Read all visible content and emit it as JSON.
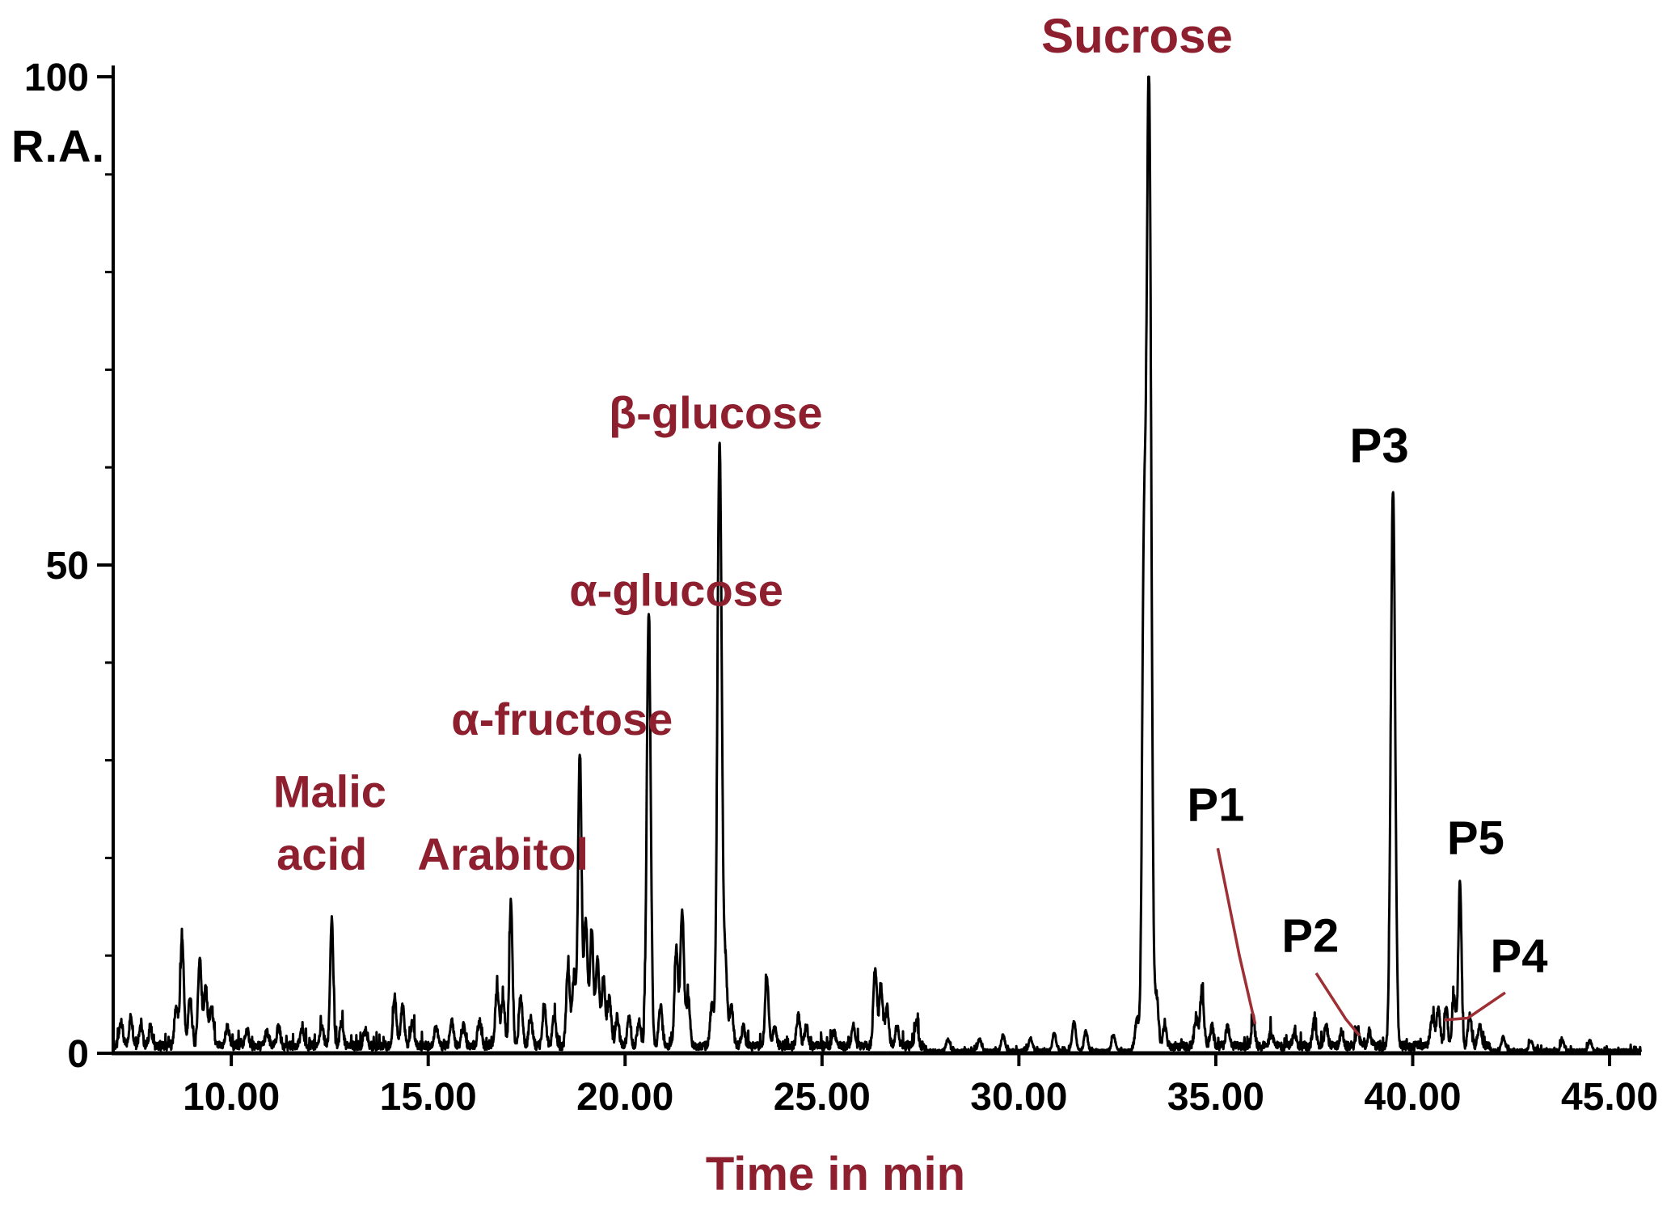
{
  "chart_data": {
    "type": "line",
    "chart_kind": "chromatogram",
    "title": "",
    "xlabel": "Time in min",
    "ylabel": "R.A.",
    "xlim": [
      7.0,
      45.8
    ],
    "ylim": [
      0,
      100
    ],
    "x_ticks": [
      10,
      15,
      20,
      25,
      30,
      35,
      40,
      45
    ],
    "x_tick_labels": [
      "10.00",
      "15.00",
      "20.00",
      "25.00",
      "30.00",
      "35.00",
      "40.00",
      "45.00"
    ],
    "y_ticks": [
      0,
      50,
      100
    ],
    "y_tick_labels": [
      "0",
      "50",
      "100"
    ],
    "y_minor_step": 10,
    "grid": false,
    "colors": {
      "trace": "#000000",
      "axis": "#000000",
      "annotation": "#8e1f2e",
      "leader": "#9e2f35",
      "black_label": "#000000"
    },
    "baseline_level": 1.0,
    "quiet_regions": [
      [
        27.6,
        32.9
      ],
      [
        42.0,
        45.8
      ]
    ],
    "labeled_peaks": [
      {
        "label": "Malic acid",
        "time": 12.55,
        "ra": 13,
        "sigma": 0.04
      },
      {
        "label": "Arabitol",
        "time": 17.1,
        "ra": 15,
        "sigma": 0.04
      },
      {
        "label": "α-fructose",
        "time": 18.85,
        "ra": 30,
        "sigma": 0.045
      },
      {
        "label": "α-glucose",
        "time": 20.6,
        "ra": 44,
        "sigma": 0.05
      },
      {
        "label": "β-glucose",
        "time": 22.4,
        "ra": 62,
        "sigma": 0.055
      },
      {
        "label": "Sucrose",
        "time": 33.3,
        "ra": 100,
        "sigma": 0.06
      },
      {
        "label": "P1",
        "time": 35.95,
        "ra": 3,
        "sigma": 0.04
      },
      {
        "label": "P2",
        "time": 38.6,
        "ra": 2,
        "sigma": 0.04
      },
      {
        "label": "P3",
        "time": 39.5,
        "ra": 57,
        "sigma": 0.055
      },
      {
        "label": "P4",
        "time": 40.85,
        "ra": 4,
        "sigma": 0.04
      },
      {
        "label": "P5",
        "time": 41.2,
        "ra": 17,
        "sigma": 0.04
      }
    ],
    "minor_peaks": [
      [
        7.2,
        2.5
      ],
      [
        7.45,
        3
      ],
      [
        7.7,
        2.2
      ],
      [
        7.95,
        1.8
      ],
      [
        8.6,
        4
      ],
      [
        8.75,
        11
      ],
      [
        8.95,
        5
      ],
      [
        9.2,
        9
      ],
      [
        9.35,
        6
      ],
      [
        9.5,
        4
      ],
      [
        9.9,
        2
      ],
      [
        10.4,
        1.6
      ],
      [
        10.9,
        1.4
      ],
      [
        11.2,
        2
      ],
      [
        11.8,
        1.6
      ],
      [
        12.3,
        2
      ],
      [
        12.8,
        2.4
      ],
      [
        13.4,
        1.6
      ],
      [
        14.15,
        5
      ],
      [
        14.35,
        4
      ],
      [
        14.6,
        2.5
      ],
      [
        15.2,
        2
      ],
      [
        15.6,
        2.4
      ],
      [
        15.9,
        2
      ],
      [
        16.3,
        2.5
      ],
      [
        16.75,
        6
      ],
      [
        16.9,
        5
      ],
      [
        17.35,
        5
      ],
      [
        17.6,
        3
      ],
      [
        17.95,
        4
      ],
      [
        18.2,
        3
      ],
      [
        18.55,
        8
      ],
      [
        18.7,
        7
      ],
      [
        19.0,
        13
      ],
      [
        19.15,
        12
      ],
      [
        19.3,
        9
      ],
      [
        19.45,
        7
      ],
      [
        19.6,
        5
      ],
      [
        19.8,
        3
      ],
      [
        20.1,
        3
      ],
      [
        20.35,
        2.5
      ],
      [
        20.9,
        4
      ],
      [
        21.3,
        10
      ],
      [
        21.45,
        14
      ],
      [
        21.6,
        5
      ],
      [
        22.2,
        4
      ],
      [
        22.55,
        8
      ],
      [
        22.7,
        4
      ],
      [
        23.0,
        2
      ],
      [
        23.6,
        7
      ],
      [
        23.8,
        2
      ],
      [
        24.4,
        3
      ],
      [
        24.6,
        2
      ],
      [
        25.3,
        1.5
      ],
      [
        25.8,
        2
      ],
      [
        26.35,
        8
      ],
      [
        26.5,
        6
      ],
      [
        26.65,
        4
      ],
      [
        26.9,
        2
      ],
      [
        27.4,
        2.5
      ],
      [
        28.2,
        1.2
      ],
      [
        29.0,
        1.2
      ],
      [
        29.6,
        1.6
      ],
      [
        30.3,
        1.3
      ],
      [
        30.9,
        1.8
      ],
      [
        31.4,
        3
      ],
      [
        31.7,
        2
      ],
      [
        32.4,
        1.6
      ],
      [
        33.0,
        3
      ],
      [
        33.17,
        44
      ],
      [
        33.5,
        5
      ],
      [
        33.7,
        2
      ],
      [
        34.5,
        3
      ],
      [
        34.65,
        6
      ],
      [
        34.9,
        2
      ],
      [
        35.3,
        2
      ],
      [
        36.4,
        1.4
      ],
      [
        37.0,
        1.4
      ],
      [
        37.5,
        2.5
      ],
      [
        37.8,
        2
      ],
      [
        38.2,
        1.5
      ],
      [
        38.9,
        1.5
      ],
      [
        40.5,
        3
      ],
      [
        40.65,
        4
      ],
      [
        41.05,
        5
      ],
      [
        41.45,
        3
      ],
      [
        41.7,
        2
      ],
      [
        42.3,
        1.4
      ],
      [
        43.0,
        1
      ],
      [
        43.8,
        1
      ],
      [
        44.5,
        1
      ]
    ],
    "annotations": [
      {
        "text": "Sucrose",
        "t": 33.0,
        "v": 102.5,
        "color": "annotation",
        "size": 60
      },
      {
        "text": "β-glucose",
        "t": 22.3,
        "v": 64.0,
        "color": "annotation",
        "size": 56
      },
      {
        "text": "α-glucose",
        "t": 21.3,
        "v": 45.8,
        "color": "annotation",
        "size": 56
      },
      {
        "text": "α-fructose",
        "t": 18.4,
        "v": 32.6,
        "color": "annotation",
        "size": 56
      },
      {
        "text": "Malic",
        "t": 12.5,
        "v": 25.2,
        "color": "annotation",
        "size": 56
      },
      {
        "text": "acid",
        "t": 12.3,
        "v": 18.8,
        "color": "annotation",
        "size": 56
      },
      {
        "text": "Arabitol",
        "t": 16.9,
        "v": 18.8,
        "color": "annotation",
        "size": 56
      },
      {
        "text": "P1",
        "t": 35.0,
        "v": 23.8,
        "color": "black",
        "size": 58
      },
      {
        "text": "P2",
        "t": 37.4,
        "v": 10.4,
        "color": "black",
        "size": 58
      },
      {
        "text": "P3",
        "t": 39.15,
        "v": 60.5,
        "color": "black",
        "size": 60
      },
      {
        "text": "P5",
        "t": 41.6,
        "v": 20.4,
        "color": "black",
        "size": 58
      },
      {
        "text": "P4",
        "t": 42.7,
        "v": 8.3,
        "color": "black",
        "size": 58
      }
    ],
    "leader_lines": [
      {
        "name": "p1-leader",
        "points": [
          [
            35.05,
            21.0
          ],
          [
            35.6,
            10.0
          ],
          [
            36.0,
            3.0
          ]
        ]
      },
      {
        "name": "p2-leader",
        "points": [
          [
            37.55,
            8.2
          ],
          [
            38.3,
            3.5
          ],
          [
            38.65,
            1.8
          ]
        ]
      },
      {
        "name": "p4-leader",
        "points": [
          [
            42.35,
            6.2
          ],
          [
            41.4,
            3.6
          ],
          [
            40.8,
            3.4
          ]
        ]
      }
    ]
  }
}
